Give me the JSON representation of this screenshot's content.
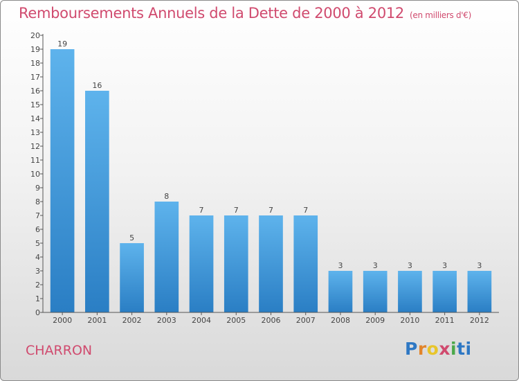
{
  "colors": {
    "bar_top": "#5eb3ec",
    "bar_bottom": "#2a7ec4",
    "title": "#d04a6e",
    "axis": "#555555",
    "label": "#444444"
  },
  "footer": {
    "commune": "CHARRON",
    "logo_letters": [
      "P",
      "r",
      "o",
      "x",
      "i",
      "ti"
    ]
  },
  "chart_data": {
    "type": "bar",
    "title": "Remboursements Annuels de la Dette de 2000 à 2012",
    "subtitle": "(en milliers d'€)",
    "xlabel": "",
    "ylabel": "",
    "ylim": [
      0,
      20
    ],
    "yticks": [
      0,
      1,
      2,
      3,
      4,
      5,
      6,
      7,
      8,
      9,
      10,
      11,
      12,
      13,
      14,
      15,
      16,
      17,
      18,
      19,
      20
    ],
    "categories": [
      "2000",
      "2001",
      "2002",
      "2003",
      "2004",
      "2005",
      "2006",
      "2007",
      "2008",
      "2009",
      "2010",
      "2011",
      "2012"
    ],
    "values": [
      19,
      16,
      5,
      8,
      7,
      7,
      7,
      7,
      3,
      3,
      3,
      3,
      3
    ],
    "grid": false,
    "legend": "none"
  }
}
